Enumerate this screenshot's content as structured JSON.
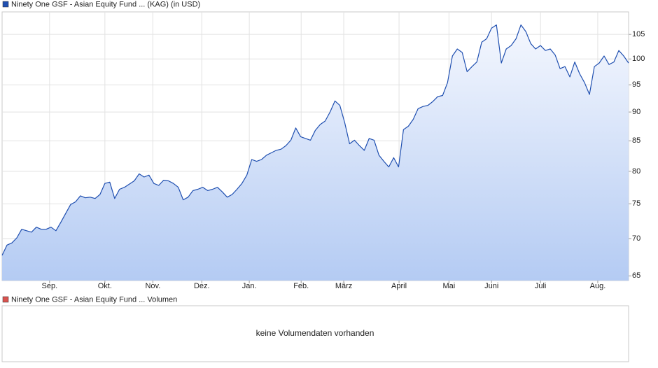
{
  "chart_data": {
    "type": "line",
    "series": [
      {
        "name": "Ninety One GSF - Asian Equity Fund ... (KAG) (in USD)",
        "color": "#1f4fb0",
        "values": [
          67.7,
          69.1,
          69.4,
          70.1,
          71.3,
          71.1,
          70.9,
          71.6,
          71.3,
          71.3,
          71.6,
          71.1,
          72.3,
          73.6,
          74.9,
          75.3,
          76.2,
          75.9,
          76.0,
          75.8,
          76.4,
          78.1,
          78.3,
          75.8,
          77.2,
          77.5,
          78.0,
          78.5,
          79.6,
          79.1,
          79.4,
          78.1,
          77.8,
          78.6,
          78.5,
          78.1,
          77.5,
          75.6,
          76.0,
          77.0,
          77.2,
          77.5,
          77.0,
          77.2,
          77.5,
          76.8,
          76.0,
          76.4,
          77.2,
          78.1,
          79.4,
          81.9,
          81.6,
          81.9,
          82.6,
          83.0,
          83.4,
          83.6,
          84.2,
          85.1,
          87.2,
          85.7,
          85.4,
          85.1,
          86.8,
          87.8,
          88.4,
          90.0,
          92.0,
          91.2,
          88.1,
          84.5,
          85.1,
          84.2,
          83.4,
          85.4,
          85.1,
          82.6,
          81.6,
          80.7,
          82.2,
          80.7,
          86.9,
          87.5,
          88.7,
          90.6,
          91.0,
          91.2,
          91.9,
          92.8,
          93.0,
          95.4,
          100.6,
          102.0,
          101.3,
          97.5,
          98.5,
          99.4,
          103.4,
          104.1,
          106.3,
          107.0,
          99.2,
          102.0,
          102.7,
          104.1,
          107.0,
          105.6,
          103.1,
          102.0,
          102.7,
          101.7,
          102.0,
          100.8,
          98.1,
          98.5,
          96.5,
          99.4,
          97.1,
          95.4,
          93.2,
          98.5,
          99.2,
          100.6,
          98.9,
          99.4,
          101.7,
          100.6,
          99.2
        ]
      }
    ],
    "xlim": [
      0,
      128
    ],
    "xticks": [
      {
        "value": 9.7,
        "label": "Sep."
      },
      {
        "value": 21.0,
        "label": "Okt."
      },
      {
        "value": 30.8,
        "label": "Nov."
      },
      {
        "value": 40.8,
        "label": "Dez."
      },
      {
        "value": 50.5,
        "label": "Jan."
      },
      {
        "value": 61.1,
        "label": "Feb."
      },
      {
        "value": 69.8,
        "label": "März"
      },
      {
        "value": 81.1,
        "label": "April"
      },
      {
        "value": 91.3,
        "label": "Mai"
      },
      {
        "value": 100.0,
        "label": "Juni"
      },
      {
        "value": 110.0,
        "label": "Juli"
      },
      {
        "value": 121.7,
        "label": "Aug."
      }
    ],
    "ylim": [
      64.4,
      109.8
    ],
    "yticks": [
      65,
      70,
      75,
      80,
      85,
      90,
      95,
      100,
      105
    ],
    "log_scale": true,
    "grid": true
  },
  "volume_panel": {
    "legend": "Ninety One GSF - Asian Equity Fund ... Volumen",
    "color": "#d9534f",
    "message": "keine Volumendaten vorhanden"
  }
}
